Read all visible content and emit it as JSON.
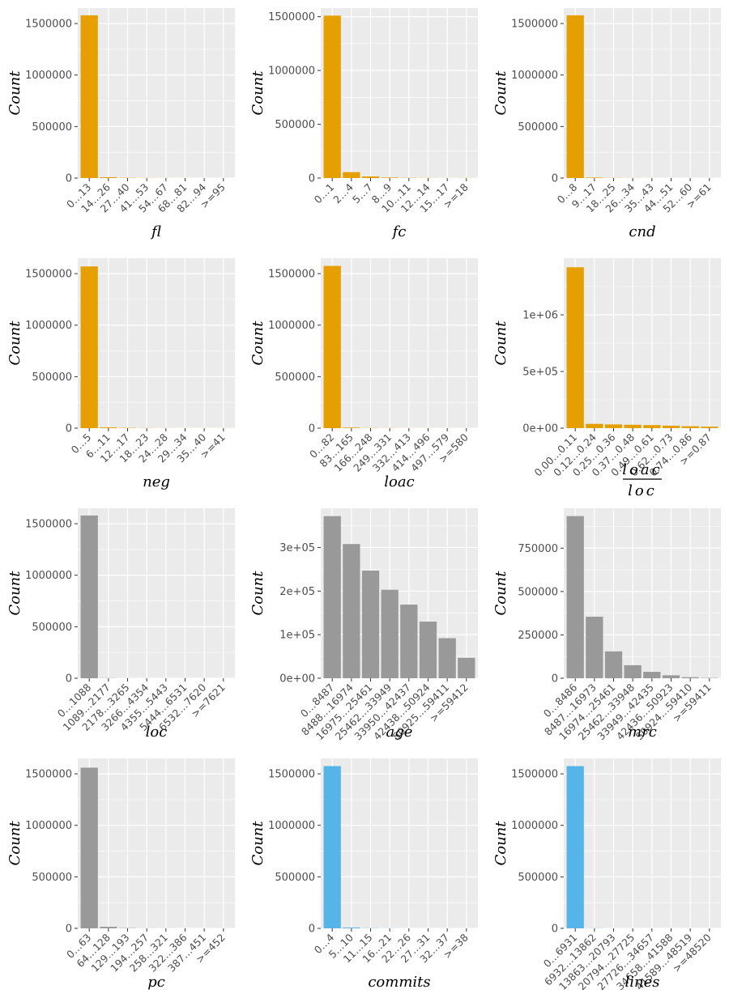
{
  "colors": {
    "orange": "#E69F00",
    "gray": "#999999",
    "blue": "#56B4E9",
    "panel_bg": "#EBEBEB",
    "grid": "#FFFFFF"
  },
  "chart_data": [
    {
      "type": "bar",
      "xlabel": "fl",
      "ylabel": "Count",
      "color": "orange",
      "ylim": [
        0,
        1650000
      ],
      "yticks": [
        0,
        500000,
        1000000,
        1500000
      ],
      "ytick_labels": [
        "0",
        "500000",
        "1000000",
        "1500000"
      ],
      "categories": [
        "0…13",
        "14…26",
        "27…40",
        "41…53",
        "54…67",
        "68…81",
        "82…94",
        ">=95"
      ],
      "values": [
        1580000,
        8000,
        2500,
        1000,
        500,
        300,
        200,
        100
      ]
    },
    {
      "type": "bar",
      "xlabel": "fc",
      "ylabel": "Count",
      "color": "orange",
      "ylim": [
        0,
        1580000
      ],
      "yticks": [
        0,
        500000,
        1000000,
        1500000
      ],
      "ytick_labels": [
        "0",
        "500000",
        "1000000",
        "1500000"
      ],
      "categories": [
        "0…1",
        "2…4",
        "5…7",
        "8…9",
        "10…11",
        "12…14",
        "15…17",
        ">=18"
      ],
      "values": [
        1510000,
        55000,
        15000,
        5000,
        2000,
        1000,
        500,
        1000
      ]
    },
    {
      "type": "bar",
      "xlabel": "cnd",
      "ylabel": "Count",
      "color": "orange",
      "ylim": [
        0,
        1650000
      ],
      "yticks": [
        0,
        500000,
        1000000,
        1500000
      ],
      "ytick_labels": [
        "0",
        "500000",
        "1000000",
        "1500000"
      ],
      "categories": [
        "0…8",
        "9…17",
        "18…25",
        "26…34",
        "35…43",
        "44…51",
        "52…60",
        ">=61"
      ],
      "values": [
        1580000,
        5000,
        1500,
        700,
        400,
        200,
        150,
        300
      ]
    },
    {
      "type": "bar",
      "xlabel": "neg",
      "ylabel": "Count",
      "color": "orange",
      "ylim": [
        0,
        1650000
      ],
      "yticks": [
        0,
        500000,
        1000000,
        1500000
      ],
      "ytick_labels": [
        "0",
        "500000",
        "1000000",
        "1500000"
      ],
      "categories": [
        "0…5",
        "6…11",
        "12…17",
        "18…23",
        "24…28",
        "29…34",
        "35…40",
        ">=41"
      ],
      "values": [
        1570000,
        8000,
        3000,
        1500,
        800,
        500,
        300,
        400
      ]
    },
    {
      "type": "bar",
      "xlabel": "loac",
      "ylabel": "Count",
      "color": "orange",
      "ylim": [
        0,
        1650000
      ],
      "yticks": [
        0,
        500000,
        1000000,
        1500000
      ],
      "ytick_labels": [
        "0",
        "500000",
        "1000000",
        "1500000"
      ],
      "categories": [
        "0…82",
        "83…165",
        "166…248",
        "249…331",
        "332…413",
        "414…496",
        "497…579",
        ">=580"
      ],
      "values": [
        1575000,
        6000,
        2000,
        1000,
        500,
        300,
        200,
        300
      ]
    },
    {
      "type": "bar",
      "xlabel_num": "loac",
      "xlabel_den": "loc",
      "ylabel": "Count",
      "color": "orange",
      "ylim": [
        0,
        1500000
      ],
      "yticks": [
        0,
        500000,
        1000000
      ],
      "ytick_labels": [
        "0e+00",
        "5e+05",
        "1e+06"
      ],
      "categories": [
        "0.00…0.11",
        "0.12…0.24",
        "0.25…0.36",
        "0.37…0.48",
        "0.49…0.61",
        "0.62…0.73",
        "0.74…0.86",
        ">=0.87"
      ],
      "values": [
        1420000,
        38000,
        33000,
        30000,
        27000,
        22000,
        17000,
        13000
      ]
    },
    {
      "type": "bar",
      "xlabel": "loc",
      "ylabel": "Count",
      "color": "gray",
      "ylim": [
        0,
        1650000
      ],
      "yticks": [
        0,
        500000,
        1000000,
        1500000
      ],
      "ytick_labels": [
        "0",
        "500000",
        "1000000",
        "1500000"
      ],
      "categories": [
        "0…1088",
        "1089…2177",
        "2178…3265",
        "3266…4354",
        "4355…5443",
        "5444…6531",
        "6532…7620",
        ">=7621"
      ],
      "values": [
        1580000,
        2000,
        500,
        200,
        100,
        80,
        50,
        150
      ]
    },
    {
      "type": "bar",
      "xlabel": "age",
      "ylabel": "Count",
      "color": "gray",
      "ylim": [
        0,
        390000
      ],
      "yticks": [
        0,
        100000,
        200000,
        300000
      ],
      "ytick_labels": [
        "0e+00",
        "1e+05",
        "2e+05",
        "3e+05"
      ],
      "categories": [
        "0…8487",
        "8488…16974",
        "16975…25461",
        "25462…33949",
        "33950…42437",
        "42438…50924",
        "50925…59411",
        ">=59412"
      ],
      "values": [
        372000,
        308000,
        247000,
        203000,
        169000,
        130000,
        92000,
        47000
      ]
    },
    {
      "type": "bar",
      "xlabel": "mrc",
      "ylabel": "Count",
      "color": "gray",
      "ylim": [
        0,
        980000
      ],
      "yticks": [
        0,
        250000,
        500000,
        750000
      ],
      "ytick_labels": [
        "0",
        "250000",
        "500000",
        "750000"
      ],
      "categories": [
        "0…8486",
        "8487…16973",
        "16974…25461",
        "25462…33948",
        "33949…42435",
        "42436…50923",
        "50924…59410",
        ">=59411"
      ],
      "values": [
        935000,
        355000,
        155000,
        75000,
        37000,
        17000,
        6000,
        2000
      ]
    },
    {
      "type": "bar",
      "xlabel": "pc",
      "ylabel": "Count",
      "color": "gray",
      "ylim": [
        0,
        1650000
      ],
      "yticks": [
        0,
        500000,
        1000000,
        1500000
      ],
      "ytick_labels": [
        "0",
        "500000",
        "1000000",
        "1500000"
      ],
      "categories": [
        "0…63",
        "64…128",
        "129…193",
        "194…257",
        "258…321",
        "322…386",
        "387…451",
        ">=452"
      ],
      "values": [
        1560000,
        15000,
        3000,
        1000,
        500,
        300,
        200,
        400
      ]
    },
    {
      "type": "bar",
      "xlabel": "commits",
      "ylabel": "Count",
      "color": "blue",
      "ylim": [
        0,
        1650000
      ],
      "yticks": [
        0,
        500000,
        1000000,
        1500000
      ],
      "ytick_labels": [
        "0",
        "500000",
        "1000000",
        "1500000"
      ],
      "categories": [
        "0…4",
        "5…10",
        "11…15",
        "16…21",
        "22…26",
        "27…31",
        "32…37",
        ">=38"
      ],
      "values": [
        1575000,
        8000,
        2000,
        800,
        400,
        200,
        150,
        300
      ]
    },
    {
      "type": "bar",
      "xlabel": "lines",
      "ylabel": "Count",
      "color": "blue",
      "ylim": [
        0,
        1650000
      ],
      "yticks": [
        0,
        500000,
        1000000,
        1500000
      ],
      "ytick_labels": [
        "0",
        "500000",
        "1000000",
        "1500000"
      ],
      "categories": [
        "0…6931",
        "6932…13862",
        "13863…20793",
        "20794…27725",
        "27726…34657",
        "34658…41588",
        "41589…48519",
        ">=48520"
      ],
      "values": [
        1575000,
        1500,
        400,
        150,
        80,
        50,
        30,
        60
      ]
    }
  ]
}
